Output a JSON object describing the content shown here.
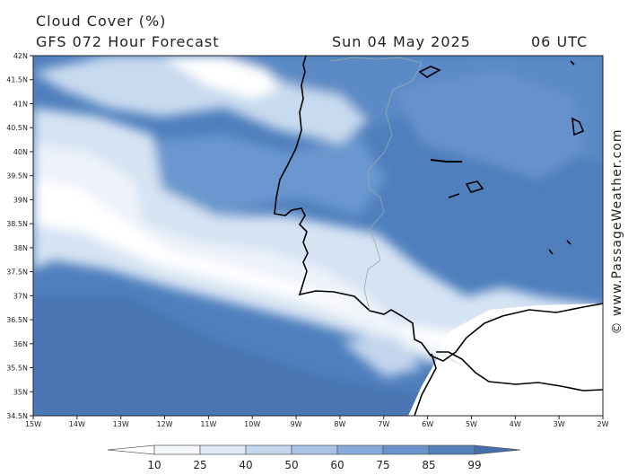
{
  "title": "Cloud Cover (%)",
  "subtitle": "GFS 072 Hour Forecast",
  "date": "Sun 04 May 2025",
  "time": "06 UTC",
  "credit": "© www.PassageWeather.com",
  "map": {
    "lat_labels": [
      "42N",
      "41.5N",
      "41N",
      "40.5N",
      "40N",
      "39.5N",
      "39N",
      "38.5N",
      "38N",
      "37.5N",
      "37N",
      "36.5N",
      "36N",
      "35.5N",
      "35N",
      "34.5N"
    ],
    "lon_labels": [
      "15W",
      "14W",
      "13W",
      "12W",
      "11W",
      "10W",
      "9W",
      "8W",
      "7W",
      "6W",
      "5W",
      "4W",
      "3W",
      "2W"
    ],
    "lat_range": [
      34.5,
      42
    ],
    "lon_range": [
      -15,
      -2
    ]
  },
  "colorbar": {
    "labels": [
      "10",
      "25",
      "40",
      "50",
      "60",
      "75",
      "85",
      "99"
    ],
    "colors": [
      "#ffffff",
      "#f3f7fc",
      "#dfe9f6",
      "#c6d8ee",
      "#a9c4e5",
      "#86abd9",
      "#6a95cc",
      "#5582bd",
      "#4670ab"
    ]
  }
}
